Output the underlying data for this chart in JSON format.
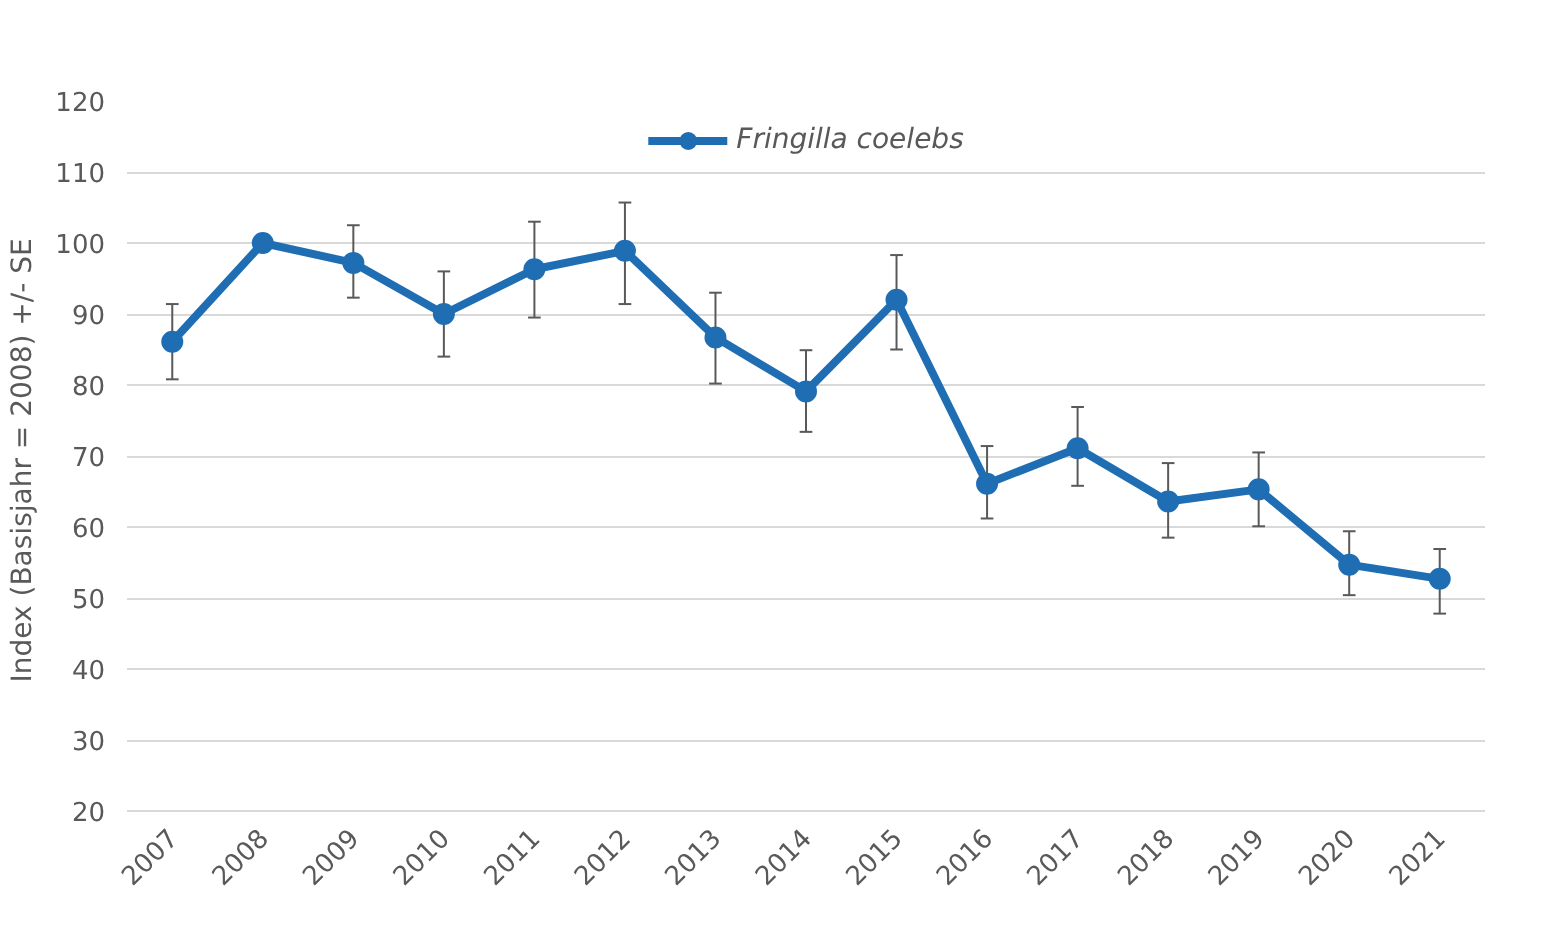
{
  "chart_data": {
    "type": "line",
    "ylabel": "Index (Basisjahr  = 2008) +/- SE",
    "categories": [
      "2007",
      "2008",
      "2009",
      "2010",
      "2011",
      "2012",
      "2013",
      "2014",
      "2015",
      "2016",
      "2017",
      "2018",
      "2019",
      "2020",
      "2021"
    ],
    "series": [
      {
        "name": "Fringilla coelebs",
        "color": "#1f6eb4",
        "values": [
          86.1,
          100,
          97.2,
          90,
          96.3,
          98.9,
          86.7,
          79.1,
          92,
          66.1,
          71.1,
          63.6,
          65.3,
          54.7,
          52.7
        ],
        "errors": [
          [
            80.8,
            91.4
          ],
          null,
          [
            92.3,
            102.5
          ],
          [
            84,
            96
          ],
          [
            89.5,
            103
          ],
          [
            91.4,
            105.7
          ],
          [
            80.2,
            93
          ],
          [
            73.4,
            84.9
          ],
          [
            85,
            98.3
          ],
          [
            61.2,
            71.4
          ],
          [
            65.8,
            76.9
          ],
          [
            58.5,
            69
          ],
          [
            60.1,
            70.5
          ],
          [
            50.4,
            59.4
          ],
          [
            47.8,
            56.9
          ]
        ]
      }
    ],
    "ylim": [
      20,
      120
    ],
    "yticks": [
      20,
      30,
      40,
      50,
      60,
      70,
      80,
      90,
      100,
      110,
      120
    ],
    "grid": "y",
    "legend": "top",
    "marker": "circle",
    "line_style": "solid"
  }
}
